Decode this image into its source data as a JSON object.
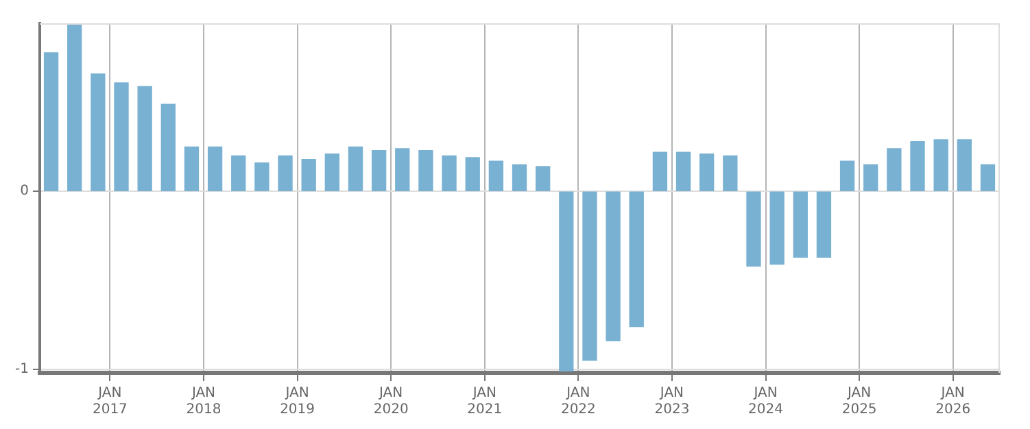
{
  "chart_data": {
    "type": "bar",
    "x": [
      "2016-05-15",
      "2016-08-15",
      "2016-11-15",
      "2017-02-15",
      "2017-05-15",
      "2017-08-15",
      "2017-11-15",
      "2018-02-15",
      "2018-05-15",
      "2018-08-15",
      "2018-11-15",
      "2019-02-15",
      "2019-05-15",
      "2019-08-15",
      "2019-11-15",
      "2020-02-15",
      "2020-05-15",
      "2020-08-15",
      "2020-11-15",
      "2021-02-15",
      "2021-05-15",
      "2021-08-15",
      "2021-11-15",
      "2022-02-15",
      "2022-05-15",
      "2022-08-15",
      "2022-11-15",
      "2023-02-15",
      "2023-05-15",
      "2023-08-15",
      "2023-11-15",
      "2024-02-15",
      "2024-05-15",
      "2024-08-15",
      "2024-11-15",
      "2025-02-15",
      "2025-05-15",
      "2025-08-15",
      "2025-11-15",
      "2026-02-15",
      "2026-05-15"
    ],
    "series": [
      {
        "color": "#79b1d3",
        "values": [
          0.78,
          0.94,
          0.66,
          0.61,
          0.59,
          0.49,
          0.25,
          0.25,
          0.2,
          0.16,
          0.2,
          0.18,
          0.21,
          0.25,
          0.23,
          0.24,
          0.23,
          0.2,
          0.19,
          0.17,
          0.15,
          0.14,
          -1.01,
          -0.95,
          -0.84,
          -0.76,
          0.22,
          0.22,
          0.21,
          0.2,
          -0.42,
          -0.41,
          -0.37,
          -0.37,
          0.17,
          0.15,
          0.24,
          0.28,
          0.29,
          0.29,
          0.15
        ]
      }
    ],
    "xlim": [
      "2016-04",
      "2026-07"
    ],
    "xticks": [
      {
        "value": "2017-01",
        "label": "JAN 2017"
      },
      {
        "value": "2018-01",
        "label": "JAN 2018"
      },
      {
        "value": "2019-01",
        "label": "JAN 2019"
      },
      {
        "value": "2020-01",
        "label": "JAN 2020"
      },
      {
        "value": "2021-01",
        "label": "JAN 2021"
      },
      {
        "value": "2022-01",
        "label": "JAN 2022"
      },
      {
        "value": "2023-01",
        "label": "JAN 2023"
      },
      {
        "value": "2024-01",
        "label": "JAN 2024"
      },
      {
        "value": "2025-01",
        "label": "JAN 2025"
      },
      {
        "value": "2026-01",
        "label": "JAN 2026"
      }
    ],
    "ylim": [
      -1.02,
      0.945
    ],
    "yticks": [
      0,
      -1
    ],
    "grid": true,
    "legend": false
  }
}
